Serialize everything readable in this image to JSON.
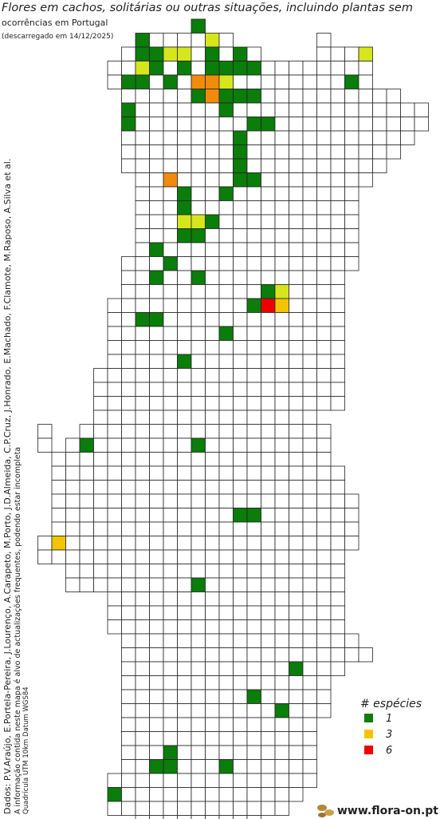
{
  "header": {
    "title": "Flores em cachos, solitárias ou outras situações, incluindo plantas sem",
    "subtitle": "ocorrências em Portugal",
    "download_note": "(descarregado em 14/12/2025)"
  },
  "credits": {
    "data": "Dados: P.V.Araújo, E.Portela-Pereira, J.Lourenço, A.Carapeto, M.Porto, J.D.Almeida, C.P.Cruz, J.Honrado, E.Machado, F.Clamote, M.Raposo, A.Silva et al.",
    "disclaimer": "A informação contida neste mapa é alvo de actualizações frequentes, podendo estar incompleta",
    "grid": "Quadrícula UTM 10km Datum WGS84"
  },
  "legend": {
    "title": "# espécies",
    "items": [
      {
        "value": 1,
        "color": "#0a7d0a"
      },
      {
        "value": 3,
        "color": "#f5c400"
      },
      {
        "value": 6,
        "color": "#ee0000"
      }
    ]
  },
  "footer": {
    "site": "www.flora-on.pt"
  }
}
